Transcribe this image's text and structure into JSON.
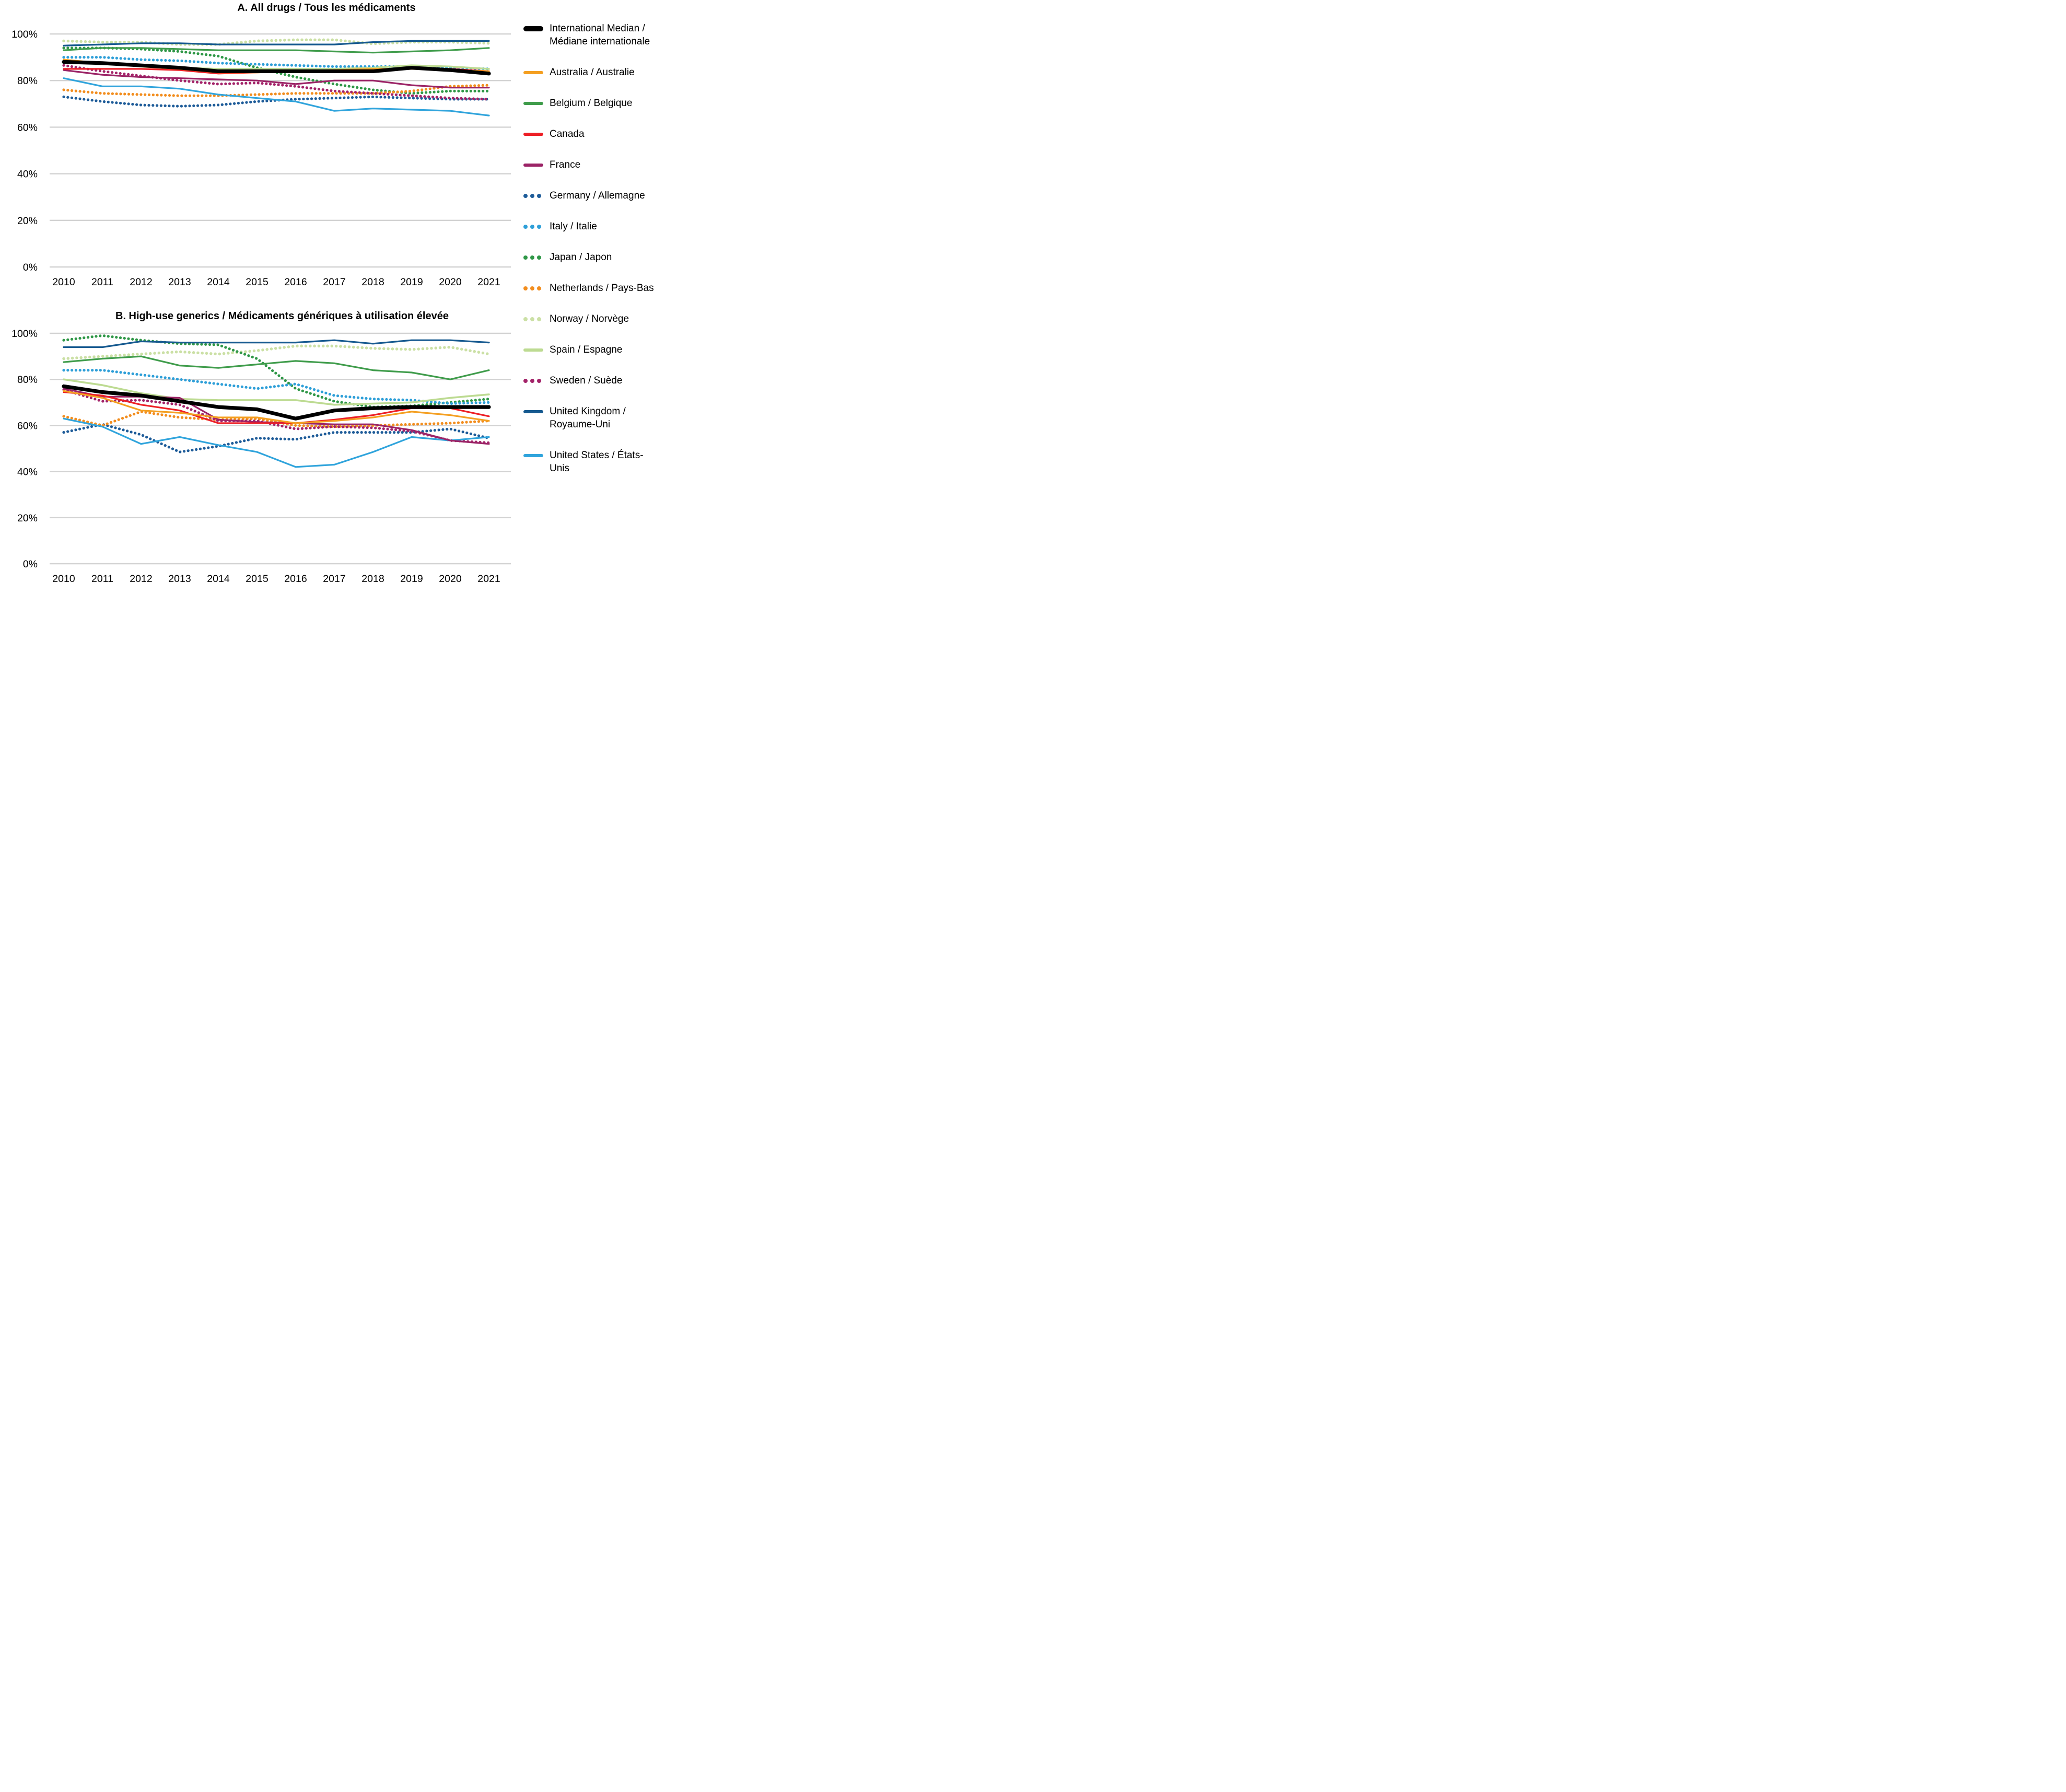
{
  "figure": {
    "panel_a_title": "A. All drugs / Tous les médicaments",
    "panel_b_title": "B. High-use generics / Médicaments génériques à utilisation élevée"
  },
  "axes": {
    "y_tick_labels": [
      "100%",
      "80%",
      "60%",
      "40%",
      "20%",
      "0%"
    ],
    "y_tick_values": [
      100,
      80,
      60,
      40,
      20,
      0
    ],
    "x_tick_labels": [
      "2010",
      "2011",
      "2012",
      "2013",
      "2014",
      "2015",
      "2016",
      "2017",
      "2018",
      "2019",
      "2020",
      "2021"
    ],
    "grid_color": "#d2d2d2"
  },
  "legend": [
    {
      "key": "median",
      "label": "International Median / Médiane internationale",
      "color": "#000000",
      "style": "median"
    },
    {
      "key": "australia",
      "label": "Australia / Australie",
      "color": "#f49f21",
      "style": "solid"
    },
    {
      "key": "belgium",
      "label": "Belgium / Belgique",
      "color": "#3f9c4b",
      "style": "solid"
    },
    {
      "key": "canada",
      "label": "Canada",
      "color": "#ed1f26",
      "style": "solid"
    },
    {
      "key": "france",
      "label": "France",
      "color": "#9b2366",
      "style": "solid"
    },
    {
      "key": "germany",
      "label": "Germany / Allemagne",
      "color": "#1e5c99",
      "style": "dotted"
    },
    {
      "key": "italy",
      "label": "Italy / Italie",
      "color": "#2e9fd8",
      "style": "dotted"
    },
    {
      "key": "japan",
      "label": "Japan / Japon",
      "color": "#2f9747",
      "style": "dotted"
    },
    {
      "key": "netherlands",
      "label": "Netherlands / Pays-Bas",
      "color": "#f28d1e",
      "style": "dotted"
    },
    {
      "key": "norway",
      "label": "Norway / Norvège",
      "color": "#cbe0a5",
      "style": "dotted"
    },
    {
      "key": "spain",
      "label": "Spain / Espagne",
      "color": "#bddb92",
      "style": "solid"
    },
    {
      "key": "sweden",
      "label": "Sweden / Suède",
      "color": "#a32369",
      "style": "dotted"
    },
    {
      "key": "uk",
      "label": "United Kingdom / Royaume-Uni",
      "color": "#15598f",
      "style": "solid"
    },
    {
      "key": "us",
      "label": "United States / États-Unis",
      "color": "#30a4dc",
      "style": "solid"
    }
  ],
  "chart_data": [
    {
      "panel": "A",
      "type": "line",
      "title": "A. All drugs / Tous les médicaments",
      "xlabel": "",
      "ylabel": "",
      "x": [
        2010,
        2011,
        2012,
        2013,
        2014,
        2015,
        2016,
        2017,
        2018,
        2019,
        2020,
        2021
      ],
      "ylim": [
        0,
        100
      ],
      "grid": true,
      "legend_position": "right",
      "series": [
        {
          "key": "norway",
          "name": "Norway / Norvège",
          "style": "dotted",
          "values": [
            97,
            96.5,
            96.5,
            95.5,
            95.5,
            97,
            97.5,
            97.5,
            95.8,
            96.5,
            96.5,
            96
          ]
        },
        {
          "key": "japan",
          "name": "Japan / Japon",
          "style": "dotted",
          "values": [
            94,
            94,
            93.5,
            92.5,
            90.5,
            85.5,
            81.5,
            78.5,
            76,
            74.5,
            75.5,
            75.5
          ]
        },
        {
          "key": "italy",
          "name": "Italy / Italie",
          "style": "dotted",
          "values": [
            90,
            90,
            89,
            88.5,
            87.5,
            87,
            86.5,
            86,
            86,
            86,
            85.5,
            85
          ]
        },
        {
          "key": "germany",
          "name": "Germany / Allemagne",
          "style": "dotted",
          "values": [
            73,
            71,
            69.5,
            69,
            69.5,
            71,
            72,
            72.5,
            73,
            72.5,
            72,
            72
          ]
        },
        {
          "key": "netherlands",
          "name": "Netherlands / Pays-Bas",
          "style": "dotted",
          "values": [
            76,
            74.5,
            74,
            73.5,
            73.5,
            74,
            74.5,
            74.5,
            74.5,
            75.5,
            77.5,
            78
          ]
        },
        {
          "key": "sweden",
          "name": "Sweden / Suède",
          "style": "dotted",
          "values": [
            86.5,
            84,
            82,
            80,
            78.5,
            79,
            77.5,
            75.5,
            74.5,
            73.5,
            72.5,
            72
          ]
        },
        {
          "key": "spain",
          "name": "Spain / Espagne",
          "style": "solid",
          "values": [
            88,
            87,
            86.5,
            85.5,
            85,
            85,
            85,
            85,
            85.5,
            86.5,
            86,
            85
          ]
        },
        {
          "key": "belgium",
          "name": "Belgium / Belgique",
          "style": "solid",
          "values": [
            93,
            94,
            94,
            93.5,
            93,
            93,
            93,
            92.5,
            92,
            92.5,
            93,
            94
          ]
        },
        {
          "key": "uk",
          "name": "United Kingdom / Royaume-Uni",
          "style": "solid",
          "values": [
            95,
            95.5,
            96,
            96,
            95.5,
            95.5,
            95.5,
            95.5,
            96.5,
            97,
            97,
            97
          ]
        },
        {
          "key": "us",
          "name": "United States / États-Unis",
          "style": "solid",
          "values": [
            81,
            77.5,
            77.5,
            76.5,
            74,
            72.5,
            71,
            67,
            68,
            67.5,
            67,
            65
          ]
        },
        {
          "key": "france",
          "name": "France",
          "style": "solid",
          "values": [
            84.5,
            82.5,
            81.5,
            81,
            80.5,
            80,
            78.5,
            80,
            80,
            78,
            77,
            77
          ]
        },
        {
          "key": "canada",
          "name": "Canada",
          "style": "solid",
          "values": [
            85,
            85,
            85,
            84.5,
            83,
            83.5,
            84,
            84.5,
            84.5,
            85,
            85,
            84
          ]
        },
        {
          "key": "australia",
          "name": "Australia / Australie",
          "style": "solid",
          "values": [
            89,
            87.5,
            86,
            85,
            83.5,
            83.5,
            84,
            84.5,
            85,
            85,
            84.5,
            84
          ]
        },
        {
          "key": "median",
          "name": "International Median / Médiane internationale",
          "style": "median",
          "values": [
            88,
            87.5,
            86.5,
            85.5,
            84,
            84,
            84,
            84,
            84,
            85.5,
            84.5,
            83
          ]
        }
      ]
    },
    {
      "panel": "B",
      "type": "line",
      "title": "B. High-use generics / Médicaments génériques à utilisation élevée",
      "xlabel": "",
      "ylabel": "",
      "x": [
        2010,
        2011,
        2012,
        2013,
        2014,
        2015,
        2016,
        2017,
        2018,
        2019,
        2020,
        2021
      ],
      "ylim": [
        0,
        100
      ],
      "grid": true,
      "legend_position": "right",
      "series": [
        {
          "key": "norway",
          "name": "Norway / Norvège",
          "style": "dotted",
          "values": [
            89,
            90,
            91,
            92,
            91,
            92.5,
            94.5,
            94.5,
            93.5,
            93,
            94,
            91
          ]
        },
        {
          "key": "japan",
          "name": "Japan / Japon",
          "style": "dotted",
          "values": [
            97,
            99,
            97,
            95.5,
            95,
            89,
            76,
            70.5,
            68,
            68.5,
            70,
            71.5
          ]
        },
        {
          "key": "italy",
          "name": "Italy / Italie",
          "style": "dotted",
          "values": [
            84,
            84,
            82,
            80,
            78,
            76,
            78,
            73,
            71.5,
            71,
            69.5,
            70
          ]
        },
        {
          "key": "germany",
          "name": "Germany / Allemagne",
          "style": "dotted",
          "values": [
            57,
            60.5,
            56,
            48.5,
            51,
            54.5,
            54,
            57,
            57,
            57,
            58.5,
            54.5
          ]
        },
        {
          "key": "netherlands",
          "name": "Netherlands / Pays-Bas",
          "style": "dotted",
          "values": [
            64,
            60,
            66,
            63.5,
            62.5,
            63,
            60,
            59.5,
            60,
            60.5,
            61,
            62
          ]
        },
        {
          "key": "sweden",
          "name": "Sweden / Suède",
          "style": "dotted",
          "values": [
            75.5,
            70.5,
            71,
            69,
            62,
            62,
            58.5,
            59.5,
            59,
            57.5,
            53.5,
            52.5
          ]
        },
        {
          "key": "spain",
          "name": "Spain / Espagne",
          "style": "solid",
          "values": [
            80,
            77.5,
            74,
            71.5,
            71,
            71,
            71,
            69,
            69.5,
            70,
            72,
            73.5
          ]
        },
        {
          "key": "belgium",
          "name": "Belgium / Belgique",
          "style": "solid",
          "values": [
            87.5,
            89,
            90,
            86,
            85,
            86.5,
            88,
            87,
            84,
            83,
            80,
            84
          ]
        },
        {
          "key": "uk",
          "name": "United Kingdom / Royaume-Uni",
          "style": "solid",
          "values": [
            94,
            94,
            96.5,
            96,
            96,
            96,
            96,
            97,
            95.5,
            97,
            97,
            96
          ]
        },
        {
          "key": "us",
          "name": "United States / États-Unis",
          "style": "solid",
          "values": [
            63,
            59.5,
            52,
            55,
            51.5,
            48.5,
            42,
            43,
            48.5,
            55,
            53.5,
            55
          ]
        },
        {
          "key": "france",
          "name": "France",
          "style": "solid",
          "values": [
            76,
            72.5,
            72.5,
            72,
            62.5,
            61.5,
            61,
            60.5,
            60.5,
            58,
            53.5,
            52
          ]
        },
        {
          "key": "canada",
          "name": "Canada",
          "style": "solid",
          "values": [
            74.5,
            73,
            69,
            66.5,
            61,
            61,
            61,
            62.5,
            64.5,
            67.5,
            67.5,
            64
          ]
        },
        {
          "key": "australia",
          "name": "Australia / Australie",
          "style": "solid",
          "values": [
            75,
            72,
            66.5,
            65.5,
            63.5,
            63.5,
            61,
            62,
            63.5,
            66,
            64.5,
            62
          ]
        },
        {
          "key": "median",
          "name": "International Median / Médiane internationale",
          "style": "median",
          "values": [
            77,
            74.5,
            73,
            70.5,
            68,
            67,
            63,
            66.5,
            67.5,
            68,
            68,
            68
          ]
        }
      ]
    }
  ]
}
